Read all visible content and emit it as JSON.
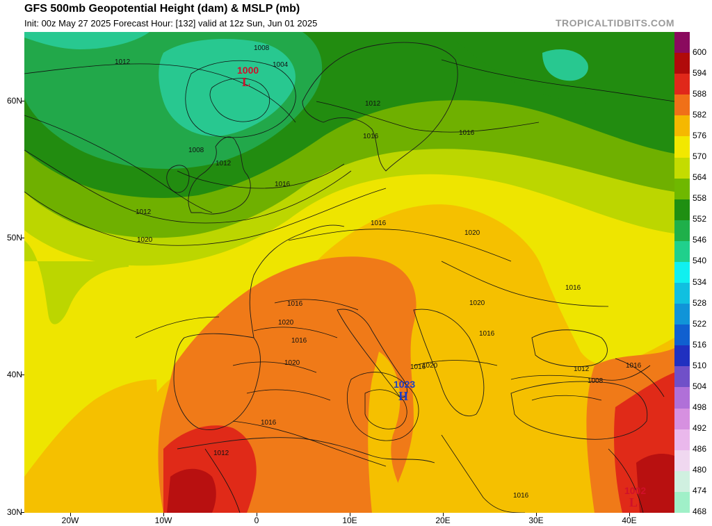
{
  "header": {
    "title": "GFS 500mb Geopotential Height (dam) & MSLP (mb)",
    "subtitle": "Init: 00z May 27 2025   Forecast Hour: [132]   valid at 12z Sun, Jun 01 2025",
    "brand": "TROPICALTIDBITS.COM"
  },
  "axes": {
    "lat_labels": [
      "60N",
      "50N",
      "40N",
      "30N"
    ],
    "lon_labels": [
      "20W",
      "10W",
      "0",
      "10E",
      "20E",
      "30E",
      "40E"
    ]
  },
  "colorbar": {
    "levels": [
      "600",
      "594",
      "588",
      "582",
      "576",
      "570",
      "564",
      "558",
      "552",
      "546",
      "540",
      "534",
      "528",
      "522",
      "516",
      "510",
      "504",
      "498",
      "492",
      "486",
      "480",
      "474",
      "468"
    ],
    "colors": [
      "#8a0a5e",
      "#b00a0a",
      "#e0281a",
      "#f07018",
      "#f5b800",
      "#f2e800",
      "#c4dc00",
      "#6fb800",
      "#1f8f12",
      "#1fb04a",
      "#20d08c",
      "#10f0f0",
      "#10c0e0",
      "#1094d8",
      "#1060d0",
      "#2030c0",
      "#7050c8",
      "#b070d8",
      "#d690e0",
      "#eab8ec",
      "#f0d8f0",
      "#d0f0e0",
      "#a0f0c8"
    ]
  },
  "contours": {
    "labels": [
      "1012",
      "1008",
      "1004",
      "1008",
      "1012",
      "1016",
      "1012",
      "1012",
      "1016",
      "1016",
      "1020",
      "1016",
      "1020",
      "1016",
      "1020",
      "1016",
      "1020",
      "1016",
      "1016",
      "1020",
      "1016",
      "1020",
      "1016",
      "1012",
      "1008",
      "1016",
      "1012",
      "1016"
    ]
  },
  "pressure_centers": [
    {
      "type": "L",
      "value": "1000",
      "color": "#d0102a"
    },
    {
      "type": "H",
      "value": "1023",
      "color": "#1a3cc8"
    },
    {
      "type": "L",
      "value": "1002",
      "color": "#d0102a"
    }
  ]
}
